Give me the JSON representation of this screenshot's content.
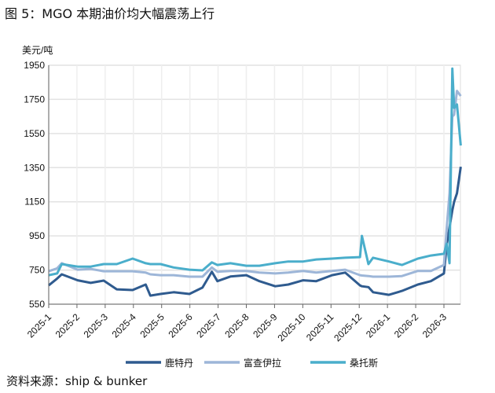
{
  "title": "图 5：MGO 本期油价均大幅震荡上行",
  "source": "资料来源：ship & bunker",
  "chart_data": {
    "type": "line",
    "ylabel": "美元/吨",
    "ylim": [
      550,
      1950
    ],
    "yticks": [
      550,
      750,
      950,
      1150,
      1350,
      1550,
      1750,
      1950
    ],
    "xticks": [
      "2025-1",
      "2025-2",
      "2025-3",
      "2025-4",
      "2025-5",
      "2025-6",
      "2025-7",
      "2025-8",
      "2025-9",
      "2025-10",
      "2025-11",
      "2025-12",
      "2026-1",
      "2026-2",
      "2026-3"
    ],
    "grid": true,
    "legend_position": "bottom",
    "x": [
      "2025-01-01",
      "2025-01-10",
      "2025-01-15",
      "2025-02-01",
      "2025-02-15",
      "2025-03-01",
      "2025-03-15",
      "2025-04-01",
      "2025-04-15",
      "2025-04-20",
      "2025-05-01",
      "2025-05-15",
      "2025-06-01",
      "2025-06-15",
      "2025-06-25",
      "2025-07-01",
      "2025-07-15",
      "2025-08-01",
      "2025-08-15",
      "2025-09-01",
      "2025-09-15",
      "2025-10-01",
      "2025-10-15",
      "2025-11-01",
      "2025-11-15",
      "2025-12-01",
      "2025-12-03",
      "2025-12-10",
      "2025-12-15",
      "2026-01-01",
      "2026-01-15",
      "2026-02-01",
      "2026-02-15",
      "2026-03-01",
      "2026-03-04",
      "2026-03-07",
      "2026-03-10",
      "2026-03-12",
      "2026-03-15",
      "2026-03-19"
    ],
    "series": [
      {
        "name": "鹿特丹",
        "color": "#2f5b8f",
        "values": [
          660,
          700,
          725,
          690,
          675,
          688,
          637,
          633,
          665,
          600,
          610,
          620,
          610,
          647,
          740,
          685,
          712,
          720,
          685,
          655,
          665,
          690,
          685,
          720,
          735,
          660,
          655,
          650,
          620,
          605,
          628,
          665,
          685,
          730,
          900,
          1000,
          1100,
          1150,
          1200,
          1355
        ]
      },
      {
        "name": "富查伊拉",
        "color": "#9db6d8",
        "values": [
          743,
          760,
          790,
          752,
          757,
          743,
          743,
          743,
          735,
          725,
          720,
          720,
          711,
          711,
          765,
          740,
          745,
          745,
          735,
          730,
          735,
          745,
          735,
          745,
          752,
          720,
          718,
          715,
          711,
          711,
          715,
          745,
          745,
          780,
          1000,
          1200,
          1650,
          1660,
          1800,
          1770
        ]
      },
      {
        "name": "桑托斯",
        "color": "#4aaecb",
        "values": [
          720,
          730,
          785,
          770,
          770,
          785,
          785,
          817,
          790,
          785,
          785,
          765,
          752,
          748,
          795,
          780,
          790,
          775,
          775,
          790,
          800,
          800,
          812,
          817,
          822,
          826,
          950,
          785,
          822,
          800,
          780,
          817,
          835,
          845,
          905,
          790,
          1930,
          1700,
          1720,
          1480
        ]
      }
    ]
  }
}
